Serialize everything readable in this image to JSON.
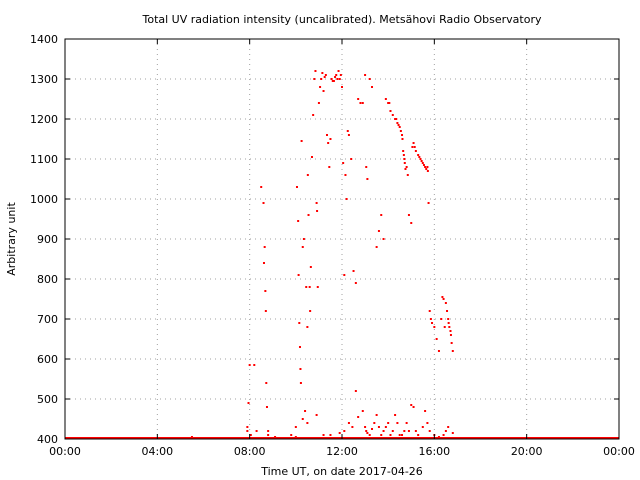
{
  "chart_data": {
    "type": "scatter",
    "title": "Total UV radiation intensity (uncalibrated). Metsähovi Radio Observatory",
    "xlabel": "Time UT, on date 2017-04-26",
    "ylabel": "Arbitrary unit",
    "xlim": [
      0,
      24
    ],
    "ylim": [
      400,
      1400
    ],
    "x_ticks": [
      0,
      4,
      8,
      12,
      16,
      20,
      24
    ],
    "x_tick_labels": [
      "00:00",
      "04:00",
      "08:00",
      "12:00",
      "16:00",
      "20:00",
      "00:00"
    ],
    "y_ticks": [
      400,
      500,
      600,
      700,
      800,
      900,
      1000,
      1100,
      1200,
      1300,
      1400
    ],
    "y_tick_labels": [
      "400",
      "500",
      "600",
      "700",
      "800",
      "900",
      "1000",
      "1100",
      "1200",
      "1300",
      "1400"
    ],
    "grid": true,
    "marker_color": "#ff0000",
    "baseline": {
      "x_range": [
        0,
        24
      ],
      "y": 400
    },
    "x": [
      5.5,
      7.9,
      7.95,
      8.0,
      8.05,
      8.2,
      8.5,
      8.6,
      8.62,
      8.65,
      8.68,
      8.7,
      8.72,
      8.75,
      8.8,
      10.0,
      10.05,
      10.1,
      10.12,
      10.15,
      10.18,
      10.2,
      10.22,
      10.25,
      10.3,
      10.35,
      10.4,
      10.45,
      10.5,
      10.52,
      10.55,
      10.6,
      10.62,
      10.65,
      10.7,
      10.75,
      10.8,
      10.85,
      10.9,
      10.92,
      10.95,
      11.0,
      11.05,
      11.1,
      11.15,
      11.2,
      11.25,
      11.3,
      11.35,
      11.4,
      11.45,
      11.5,
      11.55,
      11.6,
      11.65,
      11.7,
      11.75,
      11.8,
      11.85,
      11.9,
      11.95,
      12.0,
      12.05,
      12.1,
      12.15,
      12.2,
      12.25,
      12.3,
      12.4,
      12.5,
      12.6,
      12.7,
      12.8,
      12.9,
      13.0,
      13.05,
      13.1,
      13.2,
      13.3,
      13.5,
      13.6,
      13.7,
      13.8,
      13.9,
      14.0,
      14.05,
      14.1,
      14.2,
      14.3,
      14.35,
      14.4,
      14.45,
      14.5,
      14.55,
      14.6,
      14.62,
      14.65,
      14.68,
      14.7,
      14.72,
      14.75,
      14.8,
      14.85,
      14.9,
      15.0,
      15.05,
      15.1,
      15.15,
      15.2,
      15.3,
      15.35,
      15.4,
      15.45,
      15.5,
      15.55,
      15.6,
      15.65,
      15.7,
      15.72,
      15.75,
      15.8,
      15.85,
      15.9,
      16.0,
      16.1,
      16.2,
      16.3,
      16.35,
      16.4,
      16.45,
      16.5,
      16.55,
      16.6,
      16.62,
      16.65,
      16.7,
      16.72,
      16.75,
      16.8
    ],
    "y": [
      405,
      420,
      490,
      585,
      410,
      585,
      1030,
      990,
      840,
      880,
      770,
      720,
      540,
      480,
      420,
      405,
      1030,
      945,
      810,
      690,
      630,
      575,
      540,
      1145,
      880,
      900,
      470,
      780,
      680,
      1060,
      960,
      780,
      720,
      830,
      1105,
      1210,
      1300,
      1320,
      990,
      970,
      780,
      1240,
      1280,
      1300,
      1315,
      1270,
      1305,
      1310,
      1160,
      1140,
      1080,
      1150,
      1300,
      1295,
      1295,
      1305,
      1310,
      1300,
      1320,
      1300,
      1310,
      1280,
      1090,
      810,
      1060,
      1000,
      1170,
      1160,
      1100,
      820,
      790,
      1250,
      1240,
      1240,
      1310,
      1080,
      1050,
      1300,
      1280,
      880,
      920,
      960,
      900,
      1250,
      1240,
      1240,
      1220,
      1210,
      1200,
      1200,
      1190,
      1185,
      1180,
      1170,
      1160,
      1150,
      1120,
      1110,
      1100,
      1090,
      1075,
      1080,
      1060,
      960,
      940,
      1130,
      1140,
      1130,
      1120,
      1110,
      1105,
      1100,
      1095,
      1090,
      1085,
      1080,
      1075,
      1080,
      1070,
      990,
      720,
      700,
      690,
      680,
      650,
      620,
      700,
      755,
      750,
      680,
      740,
      720,
      700,
      690,
      680,
      670,
      660,
      640,
      620
    ],
    "x_low": [
      7.9,
      8.3,
      8.8,
      9.1,
      9.8,
      10.0,
      10.3,
      10.5,
      10.9,
      11.2,
      11.5,
      11.9,
      12.1,
      12.3,
      12.45,
      12.6,
      12.7,
      12.9,
      13.0,
      13.05,
      13.1,
      13.2,
      13.3,
      13.4,
      13.5,
      13.6,
      13.7,
      13.8,
      13.9,
      14.0,
      14.1,
      14.2,
      14.3,
      14.4,
      14.5,
      14.6,
      14.7,
      14.8,
      14.9,
      15.0,
      15.1,
      15.2,
      15.3,
      15.5,
      15.6,
      15.7,
      15.8,
      16.0,
      16.2,
      16.4,
      16.5,
      16.6,
      16.8
    ],
    "y_low": [
      430,
      420,
      410,
      405,
      410,
      430,
      450,
      440,
      460,
      410,
      410,
      415,
      420,
      440,
      430,
      520,
      455,
      470,
      430,
      420,
      415,
      410,
      425,
      440,
      460,
      430,
      410,
      420,
      430,
      440,
      410,
      420,
      460,
      440,
      410,
      410,
      420,
      440,
      420,
      485,
      480,
      420,
      410,
      430,
      470,
      440,
      420,
      410,
      405,
      410,
      420,
      430,
      415
    ]
  }
}
